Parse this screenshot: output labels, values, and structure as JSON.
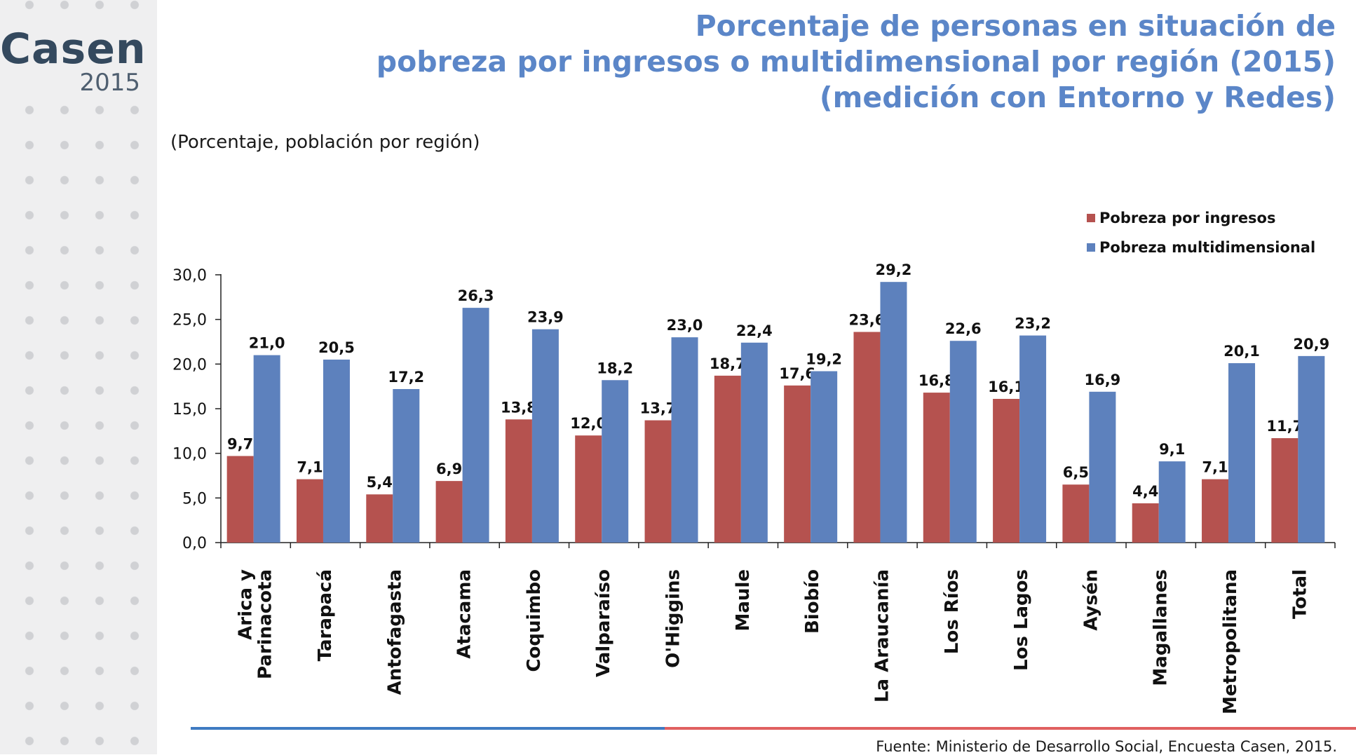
{
  "logo": {
    "word": "Casen",
    "year": "2015"
  },
  "title": {
    "line1": "Porcentaje de personas en situación de",
    "line2": "pobreza por ingresos o multidimensional por región (2015)",
    "line3": "(medición con Entorno y Redes)"
  },
  "source": "Fuente: Ministerio de Desarrollo Social, Encuesta Casen, 2015.",
  "colors": {
    "ingresos": "#b5524f",
    "multidimensional": "#5d81bd",
    "title": "#5b86c8"
  },
  "chart_data": {
    "type": "bar",
    "subtitle": "(Porcentaje, población por región)",
    "categories": [
      "Arica y Parinacota",
      "Tarapacá",
      "Antofagasta",
      "Atacama",
      "Coquimbo",
      "Valparaíso",
      "O'Higgins",
      "Maule",
      "Biobío",
      "La Araucanía",
      "Los Ríos",
      "Los Lagos",
      "Aysén",
      "Magallanes",
      "Metropolitana",
      "Total"
    ],
    "category_lines": [
      [
        "Arica y",
        "Parinacota"
      ],
      [
        "Tarapacá"
      ],
      [
        "Antofagasta"
      ],
      [
        "Atacama"
      ],
      [
        "Coquimbo"
      ],
      [
        "Valparaíso"
      ],
      [
        "O'Higgins"
      ],
      [
        "Maule"
      ],
      [
        "Biobío"
      ],
      [
        "La Araucanía"
      ],
      [
        "Los Ríos"
      ],
      [
        "Los Lagos"
      ],
      [
        "Aysén"
      ],
      [
        "Magallanes"
      ],
      [
        "Metropolitana"
      ],
      [
        "Total"
      ]
    ],
    "series": [
      {
        "name": "Pobreza por ingresos",
        "color": "#b5524f",
        "values": [
          9.7,
          7.1,
          5.4,
          6.9,
          13.8,
          12.0,
          13.7,
          18.7,
          17.6,
          23.6,
          16.8,
          16.1,
          6.5,
          4.4,
          7.1,
          11.7
        ],
        "labels": [
          "9,7",
          "7,1",
          "5,4",
          "6,9",
          "13,8",
          "12,0",
          "13,7",
          "18,7",
          "17,6",
          "23,6",
          "16,8",
          "16,1",
          "6,5",
          "4,4",
          "7,1",
          "11,7"
        ]
      },
      {
        "name": "Pobreza multidimensional",
        "color": "#5d81bd",
        "values": [
          21.0,
          20.5,
          17.2,
          26.3,
          23.9,
          18.2,
          23.0,
          22.4,
          19.2,
          29.2,
          22.6,
          23.2,
          16.9,
          9.1,
          20.1,
          20.9
        ],
        "labels": [
          "21,0",
          "20,5",
          "17,2",
          "26,3",
          "23,9",
          "18,2",
          "23,0",
          "22,4",
          "19,2",
          "29,2",
          "22,6",
          "23,2",
          "16,9",
          "9,1",
          "20,1",
          "20,9"
        ]
      }
    ],
    "ylim": [
      0,
      30
    ],
    "yticks": [
      "0,0",
      "5,0",
      "10,0",
      "15,0",
      "20,0",
      "25,0",
      "30,0"
    ],
    "ytick_values": [
      0,
      5,
      10,
      15,
      20,
      25,
      30
    ],
    "legend_position": "top-right",
    "grid": false
  }
}
